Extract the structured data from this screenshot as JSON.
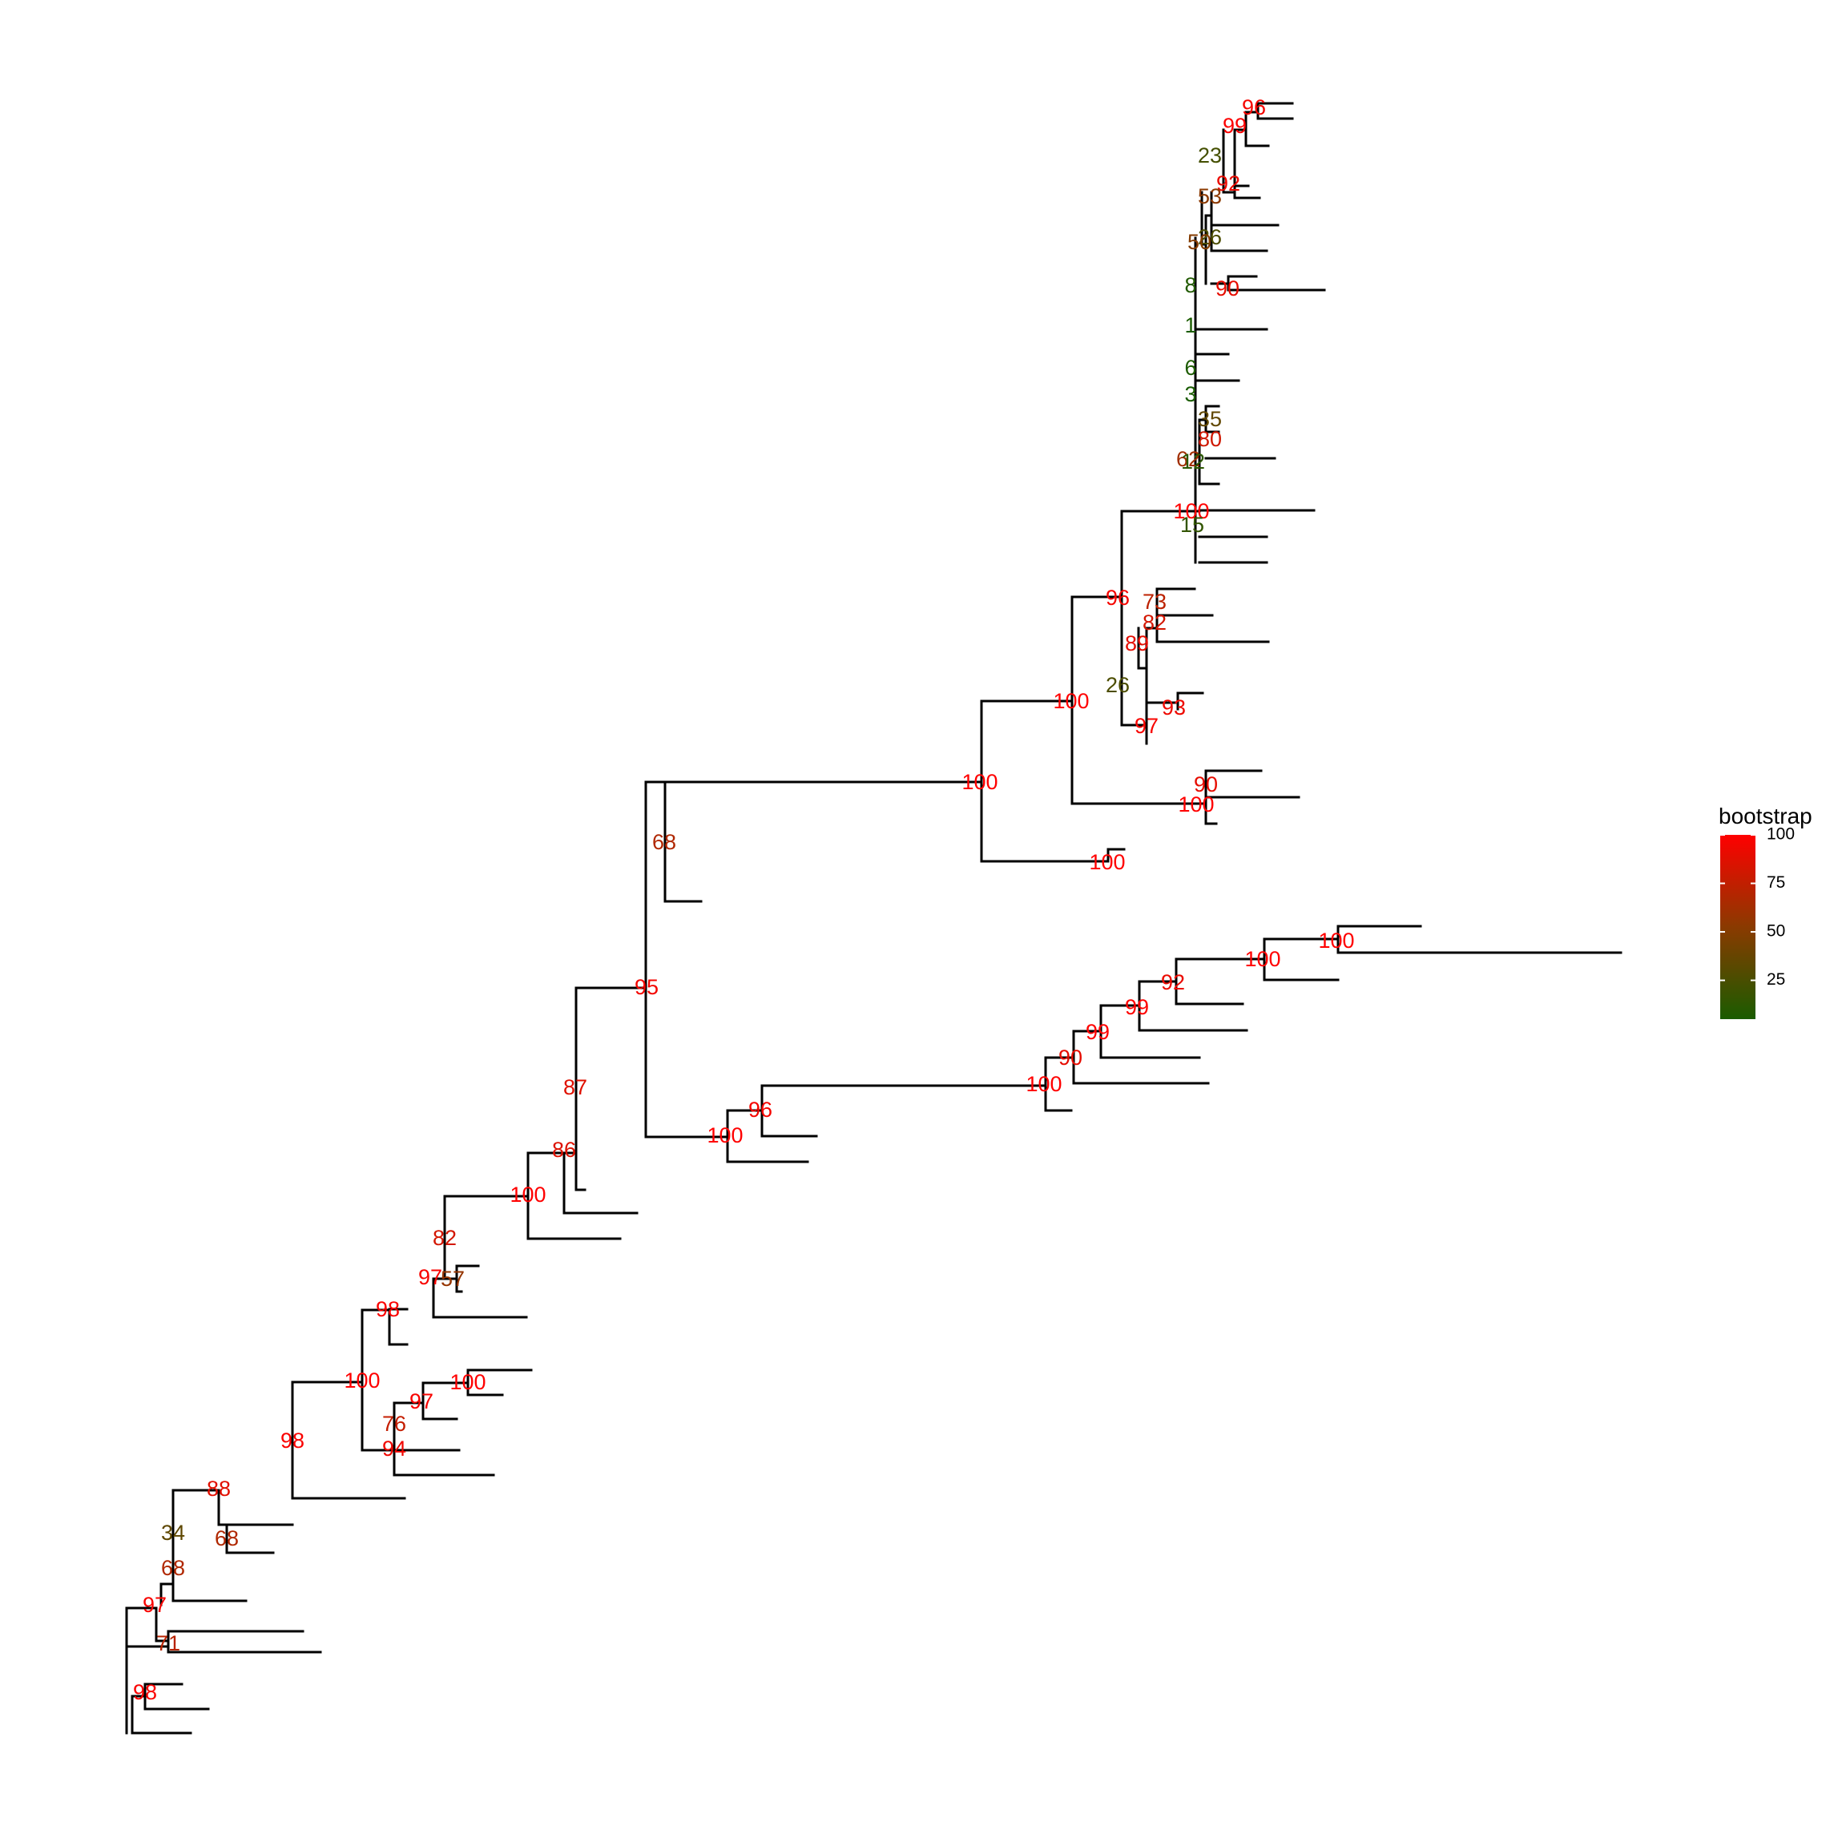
{
  "legend": {
    "title": "bootstrap",
    "ticks": [
      100,
      75,
      50,
      25
    ],
    "range": [
      5,
      100
    ],
    "color_low": "#1a5c00",
    "color_mid": "#8a3a00",
    "color_high": "#ff0000",
    "placement": "right"
  },
  "node_labels": [
    {
      "id": "nl0",
      "text": "96",
      "v": 96
    },
    {
      "id": "nl1",
      "text": "99",
      "v": 99
    },
    {
      "id": "nl2",
      "text": "23",
      "v": 23
    },
    {
      "id": "nl3",
      "text": "92",
      "v": 92
    },
    {
      "id": "nl4",
      "text": "53",
      "v": 53
    },
    {
      "id": "nl5",
      "text": "26",
      "v": 26
    },
    {
      "id": "nl6",
      "text": "50",
      "v": 50
    },
    {
      "id": "nl7",
      "text": "8",
      "v": 8
    },
    {
      "id": "nl8",
      "text": "90",
      "v": 90
    },
    {
      "id": "nl9",
      "text": "1",
      "v": 1
    },
    {
      "id": "nl10",
      "text": "6",
      "v": 6
    },
    {
      "id": "nl11",
      "text": "3",
      "v": 3
    },
    {
      "id": "nl12",
      "text": "35",
      "v": 35
    },
    {
      "id": "nl13",
      "text": "80",
      "v": 80
    },
    {
      "id": "nl14",
      "text": "62",
      "v": 62
    },
    {
      "id": "nl15",
      "text": "12",
      "v": 12
    },
    {
      "id": "nl16",
      "text": "100",
      "v": 100
    },
    {
      "id": "nl17",
      "text": "15",
      "v": 15
    },
    {
      "id": "nl18",
      "text": "96",
      "v": 96
    },
    {
      "id": "nl19",
      "text": "73",
      "v": 73
    },
    {
      "id": "nl20",
      "text": "82",
      "v": 82
    },
    {
      "id": "nl21",
      "text": "89",
      "v": 89
    },
    {
      "id": "nl22",
      "text": "26",
      "v": 26
    },
    {
      "id": "nl23",
      "text": "100",
      "v": 100
    },
    {
      "id": "nl24",
      "text": "93",
      "v": 93
    },
    {
      "id": "nl25",
      "text": "97",
      "v": 97
    },
    {
      "id": "nl26",
      "text": "100",
      "v": 100
    },
    {
      "id": "nl27",
      "text": "90",
      "v": 90
    },
    {
      "id": "nl28",
      "text": "100",
      "v": 100
    },
    {
      "id": "nl29",
      "text": "100",
      "v": 100
    },
    {
      "id": "nl30",
      "text": "68",
      "v": 68
    },
    {
      "id": "nl31",
      "text": "100",
      "v": 100
    },
    {
      "id": "nl32",
      "text": "100",
      "v": 100
    },
    {
      "id": "nl33",
      "text": "92",
      "v": 92
    },
    {
      "id": "nl34",
      "text": "99",
      "v": 99
    },
    {
      "id": "nl35",
      "text": "99",
      "v": 99
    },
    {
      "id": "nl36",
      "text": "90",
      "v": 90
    },
    {
      "id": "nl37",
      "text": "100",
      "v": 100
    },
    {
      "id": "nl38",
      "text": "95",
      "v": 95
    },
    {
      "id": "nl39",
      "text": "96",
      "v": 96
    },
    {
      "id": "nl40",
      "text": "100",
      "v": 100
    },
    {
      "id": "nl41",
      "text": "87",
      "v": 87
    },
    {
      "id": "nl42",
      "text": "86",
      "v": 86
    },
    {
      "id": "nl43",
      "text": "100",
      "v": 100
    },
    {
      "id": "nl44",
      "text": "82",
      "v": 82
    },
    {
      "id": "nl45",
      "text": "97",
      "v": 97
    },
    {
      "id": "nl46",
      "text": "57",
      "v": 57
    },
    {
      "id": "nl47",
      "text": "98",
      "v": 98
    },
    {
      "id": "nl48",
      "text": "100",
      "v": 100
    },
    {
      "id": "nl49",
      "text": "100",
      "v": 100
    },
    {
      "id": "nl50",
      "text": "97",
      "v": 97
    },
    {
      "id": "nl51",
      "text": "76",
      "v": 76
    },
    {
      "id": "nl52",
      "text": "94",
      "v": 94
    },
    {
      "id": "nl53",
      "text": "98",
      "v": 98
    },
    {
      "id": "nl54",
      "text": "88",
      "v": 88
    },
    {
      "id": "nl55",
      "text": "34",
      "v": 34
    },
    {
      "id": "nl56",
      "text": "68",
      "v": 68
    },
    {
      "id": "nl57",
      "text": "68",
      "v": 68
    },
    {
      "id": "nl58",
      "text": "97",
      "v": 97
    },
    {
      "id": "nl59",
      "text": "71",
      "v": 71
    },
    {
      "id": "nl60",
      "text": "98",
      "v": 98
    }
  ]
}
